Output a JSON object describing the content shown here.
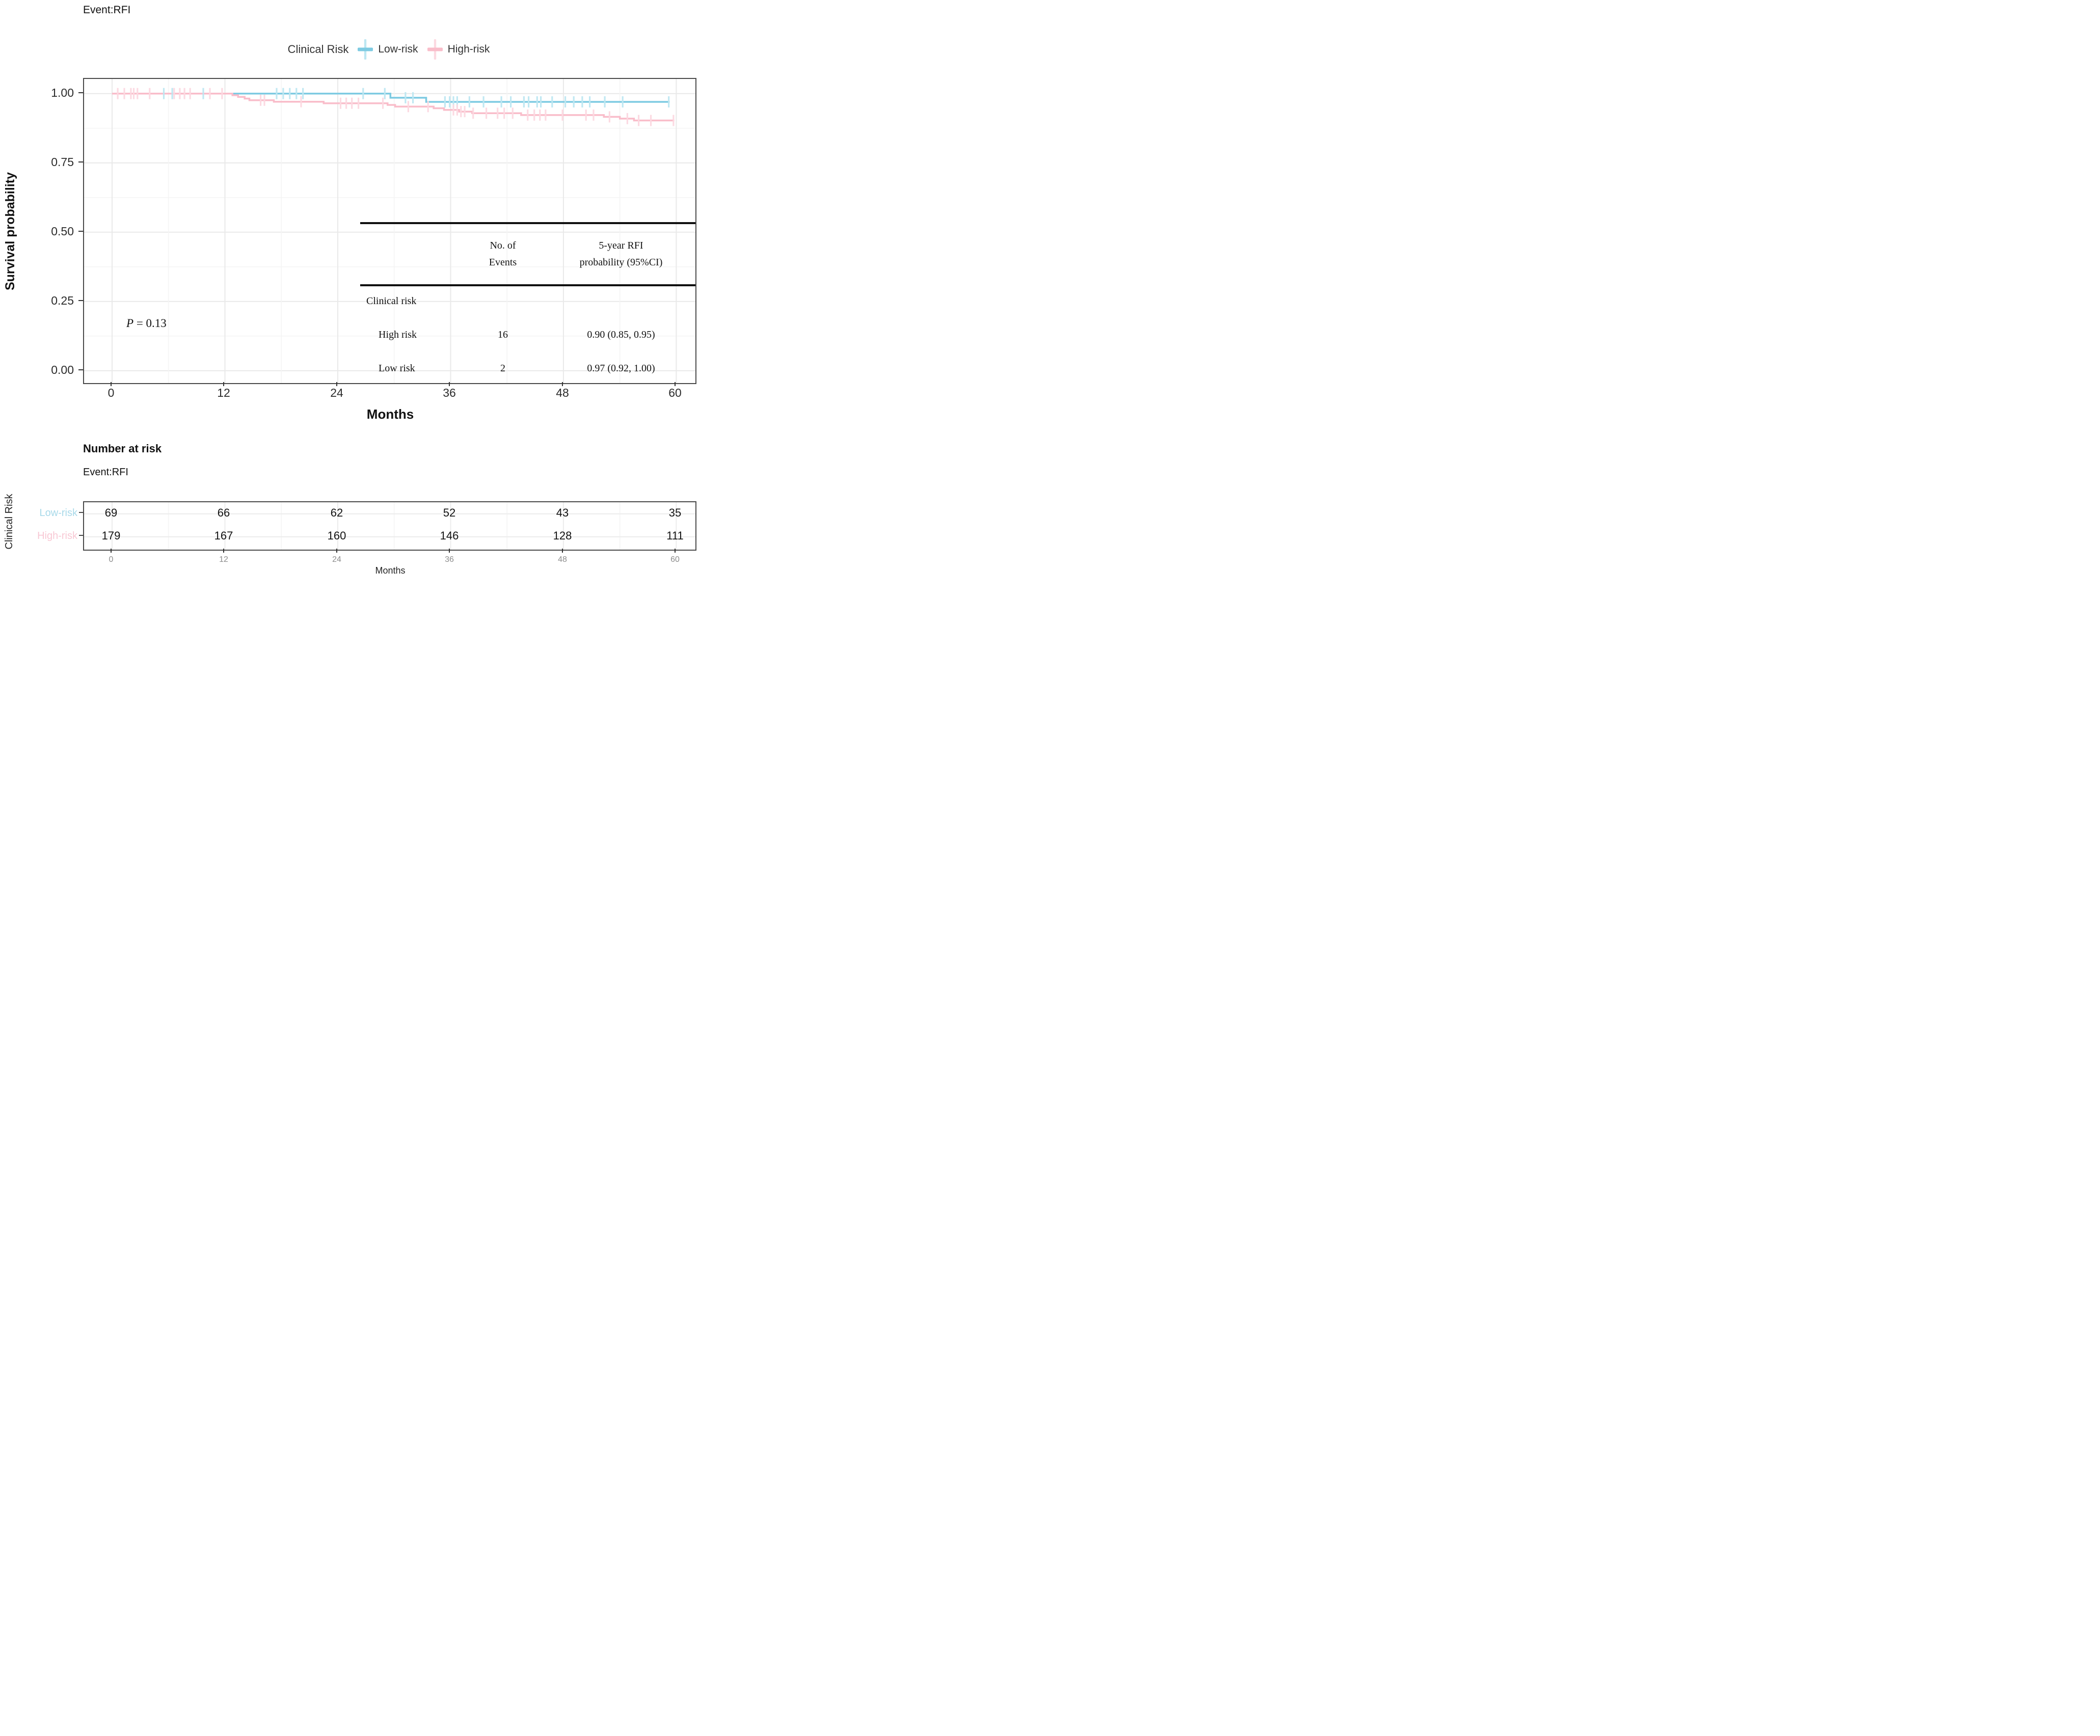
{
  "chart_data": {
    "type": "line",
    "subtype": "kaplan-meier-survival",
    "title": "Event:RFI",
    "legend_title": "Clinical Risk",
    "xlabel": "Months",
    "ylabel": "Survival probability",
    "xlim": [
      0,
      62
    ],
    "ylim": [
      0.0,
      1.0
    ],
    "xticks": [
      "0",
      "12",
      "24",
      "36",
      "48",
      "60"
    ],
    "ytick_labels": [
      "1.00",
      "0.75",
      "0.50",
      "0.25",
      "0.00"
    ],
    "grid": "major and minor, light gray",
    "legend_position": "top center",
    "pvalue": {
      "text": "P = 0.13",
      "var": "P",
      "rest": " = 0.13"
    },
    "series": [
      {
        "name": "Low-risk",
        "color": "#7ecbe2",
        "censor_color": "#bde7f2",
        "start": [
          0,
          1.0
        ],
        "steps": [
          [
            29.6,
            0.985
          ],
          [
            33.4,
            0.97
          ]
        ],
        "end": 59.3,
        "censors": [
          5.5,
          6.4,
          9.7,
          17.5,
          18.2,
          18.9,
          19.6,
          20.3,
          26.7,
          29.0,
          31.2,
          32.0,
          35.4,
          35.9,
          36.3,
          36.7,
          38.0,
          39.5,
          41.4,
          42.4,
          43.8,
          44.3,
          45.2,
          45.6,
          46.8,
          48.2,
          49.1,
          50.0,
          50.8,
          52.4,
          54.3,
          59.2
        ]
      },
      {
        "name": "High-risk",
        "color": "#f9bdca",
        "censor_color": "#fcd9e1",
        "start": [
          0,
          1.0
        ],
        "steps": [
          [
            12.8,
            0.994
          ],
          [
            13.4,
            0.988
          ],
          [
            14.1,
            0.982
          ],
          [
            14.6,
            0.976
          ],
          [
            17.2,
            0.9705
          ],
          [
            22.5,
            0.965
          ],
          [
            29.3,
            0.959
          ],
          [
            30.1,
            0.953
          ],
          [
            34.2,
            0.947
          ],
          [
            35.3,
            0.941
          ],
          [
            36.9,
            0.935
          ],
          [
            38.3,
            0.929
          ],
          [
            43.5,
            0.9225
          ],
          [
            52.3,
            0.916
          ],
          [
            54.0,
            0.9095
          ],
          [
            55.5,
            0.903
          ]
        ],
        "end": 59.8,
        "censors": [
          0.6,
          1.3,
          2.0,
          2.3,
          2.7,
          4.0,
          6.6,
          7.2,
          7.7,
          8.3,
          10.4,
          11.7,
          15.8,
          16.2,
          20.1,
          24.3,
          24.9,
          25.5,
          26.2,
          28.8,
          31.5,
          33.6,
          36.3,
          36.7,
          37.1,
          37.5,
          38.4,
          39.8,
          41.0,
          41.7,
          42.6,
          44.2,
          44.9,
          45.5,
          46.1,
          47.9,
          50.4,
          51.2,
          52.9,
          54.8,
          56.0,
          57.3,
          59.7
        ]
      }
    ],
    "events_table": {
      "col_events_header": "No. of\nEvents",
      "col_prob_header": "5-year RFI\nprobability (95%CI)",
      "group_label": "Clinical risk",
      "rows": [
        {
          "label": "High risk",
          "events": "16",
          "probability": "0.90 (0.85, 0.95)"
        },
        {
          "label": "Low risk",
          "events": "2",
          "probability": "0.97 (0.92, 1.00)"
        }
      ]
    },
    "number_at_risk": {
      "title": "Number at risk",
      "subtitle": "Event:RFI",
      "axis_label": "Clinical Risk",
      "xlabel": "Months",
      "xticks": [
        "0",
        "12",
        "24",
        "36",
        "48",
        "60"
      ],
      "rows": [
        {
          "label": "Low-risk",
          "label_color": "#a8d9e9",
          "values": [
            "69",
            "66",
            "62",
            "52",
            "43",
            "35"
          ]
        },
        {
          "label": "High-risk",
          "label_color": "#f8c8d4",
          "values": [
            "179",
            "167",
            "160",
            "146",
            "128",
            "111"
          ]
        }
      ]
    }
  }
}
